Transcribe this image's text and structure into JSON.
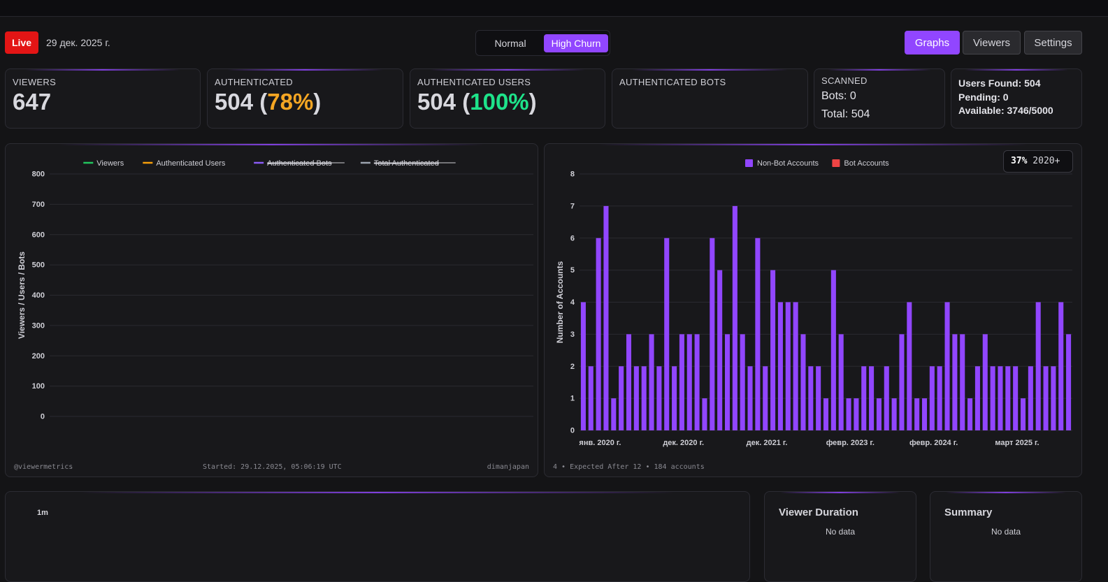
{
  "header": {
    "live_label": "Live",
    "date": "29 дек. 2025 г.",
    "modes": {
      "normal": "Normal",
      "high_churn": "High Churn"
    },
    "nav": {
      "graphs": "Graphs",
      "viewers": "Viewers",
      "settings": "Settings"
    }
  },
  "stats": {
    "viewers": {
      "label": "VIEWERS",
      "value": "647"
    },
    "authenticated": {
      "label": "AUTHENTICATED",
      "value": "504",
      "open": " (",
      "pct": "78%",
      "close": ")"
    },
    "authenticated_users": {
      "label": "AUTHENTICATED USERS",
      "value": "504",
      "open": " (",
      "pct": "100%",
      "close": ")"
    },
    "authenticated_bots": {
      "label": "AUTHENTICATED BOTS"
    },
    "scanned": {
      "label": "SCANNED",
      "bots": "Bots: 0",
      "total": "Total: 504"
    },
    "info": {
      "users_found": "Users Found: 504",
      "pending": "Pending: 0",
      "available": "Available: 3746/5000"
    }
  },
  "colors": {
    "accent": "#9146ff",
    "live": "#e31515",
    "orange": "#f5a623",
    "green": "#1ee38a",
    "bot_red": "#ef4444"
  },
  "chart_data": [
    {
      "type": "line",
      "ylabel": "Viewers / Users / Bots",
      "ylim": [
        0,
        800
      ],
      "yticks": [
        "800",
        "700",
        "600",
        "500",
        "400",
        "300",
        "200",
        "100",
        "0"
      ],
      "legend": [
        {
          "name": "Viewers",
          "color": "#22c55e",
          "hidden": false
        },
        {
          "name": "Authenticated Users",
          "color": "#f59e0b",
          "hidden": false
        },
        {
          "name": "Authenticated Bots",
          "color": "#8b5cf6",
          "hidden": true
        },
        {
          "name": "Total Authenticated",
          "color": "#9ca3af",
          "hidden": true
        }
      ],
      "series": [],
      "footer": {
        "left": "@viewermetrics",
        "center": "Started: 29.12.2025, 05:06:19 UTC",
        "right": "dimanjapan"
      }
    },
    {
      "type": "bar",
      "ylabel": "Number of Accounts",
      "ylim": [
        0,
        8
      ],
      "yticks": [
        "8",
        "7",
        "6",
        "5",
        "4",
        "3",
        "2",
        "1",
        "0"
      ],
      "legend": [
        {
          "name": "Non-Bot Accounts",
          "color": "#9146ff"
        },
        {
          "name": "Bot Accounts",
          "color": "#ef4444"
        }
      ],
      "xlabels": [
        "янв. 2020 г.",
        "дек. 2020 г.",
        "дек. 2021 г.",
        "февр. 2023 г.",
        "февр. 2024 г.",
        "март 2025 г."
      ],
      "xlabel_indices": [
        0,
        11,
        22,
        33,
        44,
        55
      ],
      "series": [
        {
          "name": "Non-Bot Accounts",
          "values": [
            4,
            2,
            6,
            7,
            1,
            2,
            3,
            2,
            2,
            3,
            2,
            6,
            2,
            3,
            3,
            3,
            1,
            6,
            5,
            3,
            7,
            3,
            2,
            6,
            2,
            5,
            4,
            4,
            4,
            3,
            2,
            2,
            1,
            5,
            3,
            1,
            1,
            2,
            2,
            1,
            2,
            1,
            3,
            4,
            1,
            1,
            2,
            2,
            4,
            3,
            3,
            1,
            2,
            3,
            2,
            2,
            2,
            2,
            1,
            2,
            4,
            2,
            2,
            4,
            3
          ]
        },
        {
          "name": "Bot Accounts",
          "values": [
            0,
            0,
            0,
            0,
            0,
            0,
            0,
            0,
            0,
            0,
            0,
            0,
            0,
            0,
            0,
            0,
            0,
            0,
            0,
            0,
            0,
            0,
            0,
            0,
            0,
            0,
            0,
            0,
            0,
            0,
            0,
            0,
            0,
            0,
            0,
            0,
            0,
            0,
            0,
            0,
            0,
            0,
            0,
            0,
            0,
            0,
            0,
            0,
            0,
            0,
            0,
            0,
            0,
            0,
            0,
            0,
            0,
            0,
            0,
            0,
            0,
            0,
            0,
            0,
            0
          ]
        }
      ],
      "badge": {
        "pct": "37%",
        "label": " 2020+"
      },
      "footer": {
        "left": "4 • Expected After 12 • 184 accounts"
      }
    }
  ],
  "bottom": {
    "timeline_label": "1m",
    "duration": {
      "title": "Viewer Duration",
      "empty": "No data"
    },
    "summary": {
      "title": "Summary",
      "empty": "No data"
    }
  }
}
